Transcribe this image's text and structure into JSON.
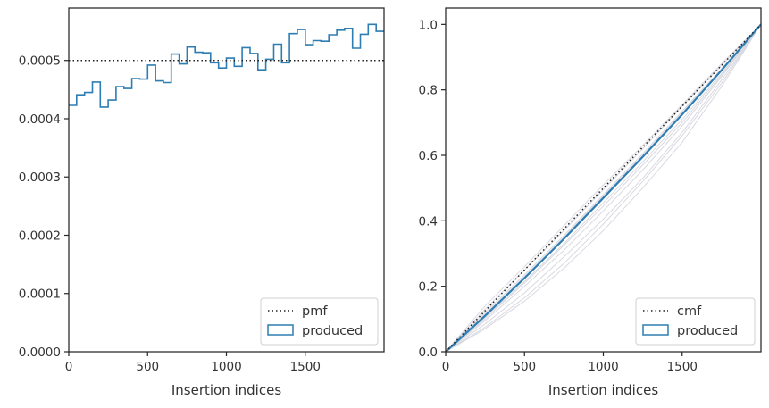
{
  "chart_data": [
    {
      "type": "step",
      "xlabel": "Insertion indices",
      "ylabel": "",
      "xlim": [
        0,
        2000
      ],
      "ylim": [
        0,
        0.00059
      ],
      "xticks": [
        0,
        500,
        1000,
        1500
      ],
      "xtick_labels": [
        "0",
        "500",
        "1000",
        "1500"
      ],
      "yticks": [
        0,
        0.0001,
        0.0002,
        0.0003,
        0.0004,
        0.0005
      ],
      "ytick_labels": [
        "0.0000",
        "0.0001",
        "0.0002",
        "0.0003",
        "0.0004",
        "0.0005"
      ],
      "reference_line": {
        "name": "pmf",
        "y": 0.0005,
        "style": "dotted",
        "color": "#222222"
      },
      "series": [
        {
          "name": "produced",
          "color": "#2e7db3",
          "bin_width": 50,
          "x": [
            0,
            50,
            100,
            150,
            200,
            250,
            300,
            350,
            400,
            450,
            500,
            550,
            600,
            650,
            700,
            750,
            800,
            850,
            900,
            950,
            1000,
            1050,
            1100,
            1150,
            1200,
            1250,
            1300,
            1350,
            1400,
            1450,
            1500,
            1550,
            1600,
            1650,
            1700,
            1750,
            1800,
            1850,
            1900,
            1950
          ],
          "values": [
            0.000423,
            0.000441,
            0.000445,
            0.000463,
            0.00042,
            0.000432,
            0.000455,
            0.000452,
            0.000469,
            0.000468,
            0.000492,
            0.000465,
            0.000462,
            0.000511,
            0.000494,
            0.000523,
            0.000514,
            0.000513,
            0.000496,
            0.000487,
            0.000504,
            0.00049,
            0.000522,
            0.000512,
            0.000484,
            0.000502,
            0.000528,
            0.000496,
            0.000546,
            0.000553,
            0.000527,
            0.000534,
            0.000533,
            0.000544,
            0.000552,
            0.000555,
            0.000521,
            0.000545,
            0.000562,
            0.00055
          ]
        }
      ],
      "legend": {
        "position": "lower-right",
        "entries": [
          {
            "label": "pmf",
            "kind": "line"
          },
          {
            "label": "produced",
            "kind": "patch"
          }
        ]
      }
    },
    {
      "type": "line",
      "xlabel": "Insertion indices",
      "ylabel": "",
      "xlim": [
        0,
        2000
      ],
      "ylim": [
        0,
        1.05
      ],
      "xticks": [
        0,
        500,
        1000,
        1500
      ],
      "xtick_labels": [
        "0",
        "500",
        "1000",
        "1500"
      ],
      "yticks": [
        0,
        0.2,
        0.4,
        0.6,
        0.8,
        1.0
      ],
      "ytick_labels": [
        "0.0",
        "0.2",
        "0.4",
        "0.6",
        "0.8",
        "1.0"
      ],
      "reference_line": {
        "name": "cmf",
        "x": [
          0,
          2000
        ],
        "y": [
          0,
          1
        ],
        "style": "dotted",
        "color": "#222222"
      },
      "series": [
        {
          "name": "produced",
          "color": "#2e7db3",
          "x": [
            0,
            250,
            500,
            750,
            1000,
            1250,
            1500,
            1750,
            2000
          ],
          "y": [
            0,
            0.11,
            0.225,
            0.345,
            0.47,
            0.595,
            0.725,
            0.86,
            1.0
          ]
        }
      ],
      "background_series_color": "#d8d8e0",
      "background_series": [
        {
          "x": [
            0,
            250,
            500,
            750,
            1000,
            1250,
            1500,
            1750,
            2000
          ],
          "y": [
            0,
            0.07,
            0.155,
            0.255,
            0.37,
            0.5,
            0.64,
            0.81,
            1.0
          ]
        },
        {
          "x": [
            0,
            250,
            500,
            750,
            1000,
            1250,
            1500,
            1750,
            2000
          ],
          "y": [
            0,
            0.085,
            0.18,
            0.29,
            0.405,
            0.53,
            0.67,
            0.83,
            1.0
          ]
        },
        {
          "x": [
            0,
            250,
            500,
            750,
            1000,
            1250,
            1500,
            1750,
            2000
          ],
          "y": [
            0,
            0.095,
            0.2,
            0.31,
            0.43,
            0.555,
            0.69,
            0.84,
            1.0
          ]
        },
        {
          "x": [
            0,
            250,
            500,
            750,
            1000,
            1250,
            1500,
            1750,
            2000
          ],
          "y": [
            0,
            0.105,
            0.215,
            0.33,
            0.455,
            0.58,
            0.71,
            0.85,
            1.0
          ]
        },
        {
          "x": [
            0,
            250,
            500,
            750,
            1000,
            1250,
            1500,
            1750,
            2000
          ],
          "y": [
            0,
            0.12,
            0.235,
            0.355,
            0.48,
            0.605,
            0.735,
            0.865,
            1.0
          ]
        },
        {
          "x": [
            0,
            250,
            500,
            750,
            1000,
            1250,
            1500,
            1750,
            2000
          ],
          "y": [
            0,
            0.13,
            0.25,
            0.37,
            0.495,
            0.62,
            0.75,
            0.875,
            1.0
          ]
        },
        {
          "x": [
            0,
            250,
            500,
            750,
            1000,
            1250,
            1500,
            1750,
            2000
          ],
          "y": [
            0,
            0.14,
            0.26,
            0.385,
            0.51,
            0.63,
            0.755,
            0.88,
            1.0
          ]
        },
        {
          "x": [
            0,
            250,
            500,
            750,
            1000,
            1250,
            1500,
            1750,
            2000
          ],
          "y": [
            0,
            0.075,
            0.165,
            0.27,
            0.39,
            0.52,
            0.66,
            0.82,
            1.0
          ]
        },
        {
          "x": [
            0,
            250,
            500,
            750,
            1000,
            1250,
            1500,
            1750,
            2000
          ],
          "y": [
            0,
            0.1,
            0.21,
            0.325,
            0.445,
            0.57,
            0.7,
            0.845,
            1.0
          ]
        },
        {
          "x": [
            0,
            250,
            500,
            750,
            1000,
            1250,
            1500,
            1750,
            2000
          ],
          "y": [
            0,
            0.115,
            0.23,
            0.35,
            0.475,
            0.6,
            0.73,
            0.862,
            1.0
          ]
        }
      ],
      "legend": {
        "position": "lower-right",
        "entries": [
          {
            "label": "cmf",
            "kind": "line"
          },
          {
            "label": "produced",
            "kind": "patch"
          }
        ]
      }
    }
  ]
}
